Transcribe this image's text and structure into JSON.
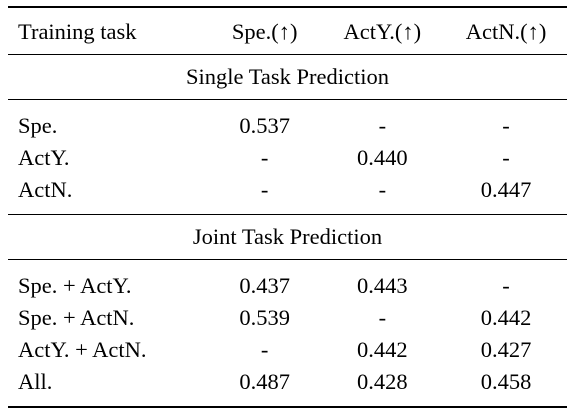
{
  "table": {
    "headers": [
      "Training task",
      "Spe.(↑)",
      "ActY.(↑)",
      "ActN.(↑)"
    ],
    "sections": [
      {
        "title": "Single Task Prediction",
        "rows": [
          {
            "task": "Spe.",
            "spe": "0.537",
            "acty": "-",
            "actn": "-"
          },
          {
            "task": "ActY.",
            "spe": "-",
            "acty": "0.440",
            "actn": "-"
          },
          {
            "task": "ActN.",
            "spe": "-",
            "acty": "-",
            "actn": "0.447"
          }
        ]
      },
      {
        "title": "Joint Task Prediction",
        "rows": [
          {
            "task": "Spe. + ActY.",
            "spe": "0.437",
            "acty": "0.443",
            "actn": "-"
          },
          {
            "task": "Spe. + ActN.",
            "spe": "0.539",
            "acty": "-",
            "actn": "0.442"
          },
          {
            "task": "ActY. + ActN.",
            "spe": "-",
            "acty": "0.442",
            "actn": "0.427"
          },
          {
            "task": "All.",
            "spe": "0.487",
            "acty": "0.428",
            "actn": "0.458"
          }
        ]
      }
    ]
  }
}
